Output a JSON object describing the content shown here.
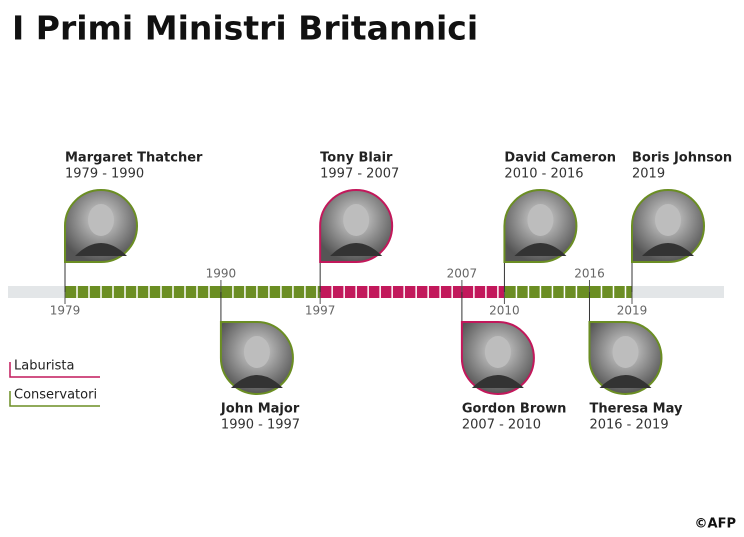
{
  "title": "I Primi Ministri Britannici",
  "axis": {
    "ticks": [
      1979,
      1990,
      1997,
      2007,
      2010,
      2016,
      2019
    ]
  },
  "legend": [
    {
      "label": "Laburista",
      "color": "#c2185b"
    },
    {
      "label": "Conservatori",
      "color": "#6b8e23"
    }
  ],
  "ministers": [
    {
      "name": "Margaret Thatcher",
      "term": "1979 - 1990",
      "color": "#6b8e23"
    },
    {
      "name": "John Major",
      "term": "1990 - 1997",
      "color": "#6b8e23"
    },
    {
      "name": "Tony Blair",
      "term": "1997 - 2007",
      "color": "#c2185b"
    },
    {
      "name": "Gordon Brown",
      "term": "2007 - 2010",
      "color": "#c2185b"
    },
    {
      "name": "David Cameron",
      "term": "2010 - 2016",
      "color": "#6b8e23"
    },
    {
      "name": "Theresa May",
      "term": "2016 - 2019",
      "color": "#6b8e23"
    },
    {
      "name": "Boris Johnson",
      "term": "2019",
      "color": "#6b8e23"
    }
  ],
  "footer": "©AFP"
}
